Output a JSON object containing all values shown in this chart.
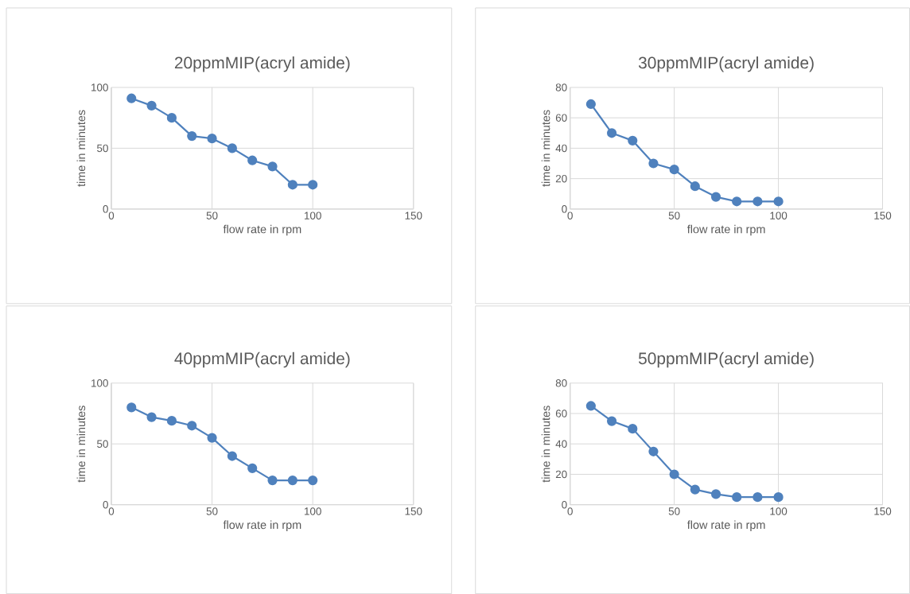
{
  "chart_data": [
    {
      "type": "line",
      "title": "20ppmMIP(acryl amide)",
      "xlabel": "flow rate in rpm",
      "ylabel": "time in minutes",
      "x": [
        10,
        20,
        30,
        40,
        50,
        60,
        70,
        80,
        90,
        100
      ],
      "values": [
        91,
        85,
        75,
        60,
        58,
        50,
        40,
        35,
        20,
        20
      ],
      "color": "#4f81bd",
      "xlim": [
        0,
        150
      ],
      "xticks": [
        0,
        50,
        100,
        150
      ],
      "ylim": [
        0,
        100
      ],
      "yticks": [
        0,
        50,
        100
      ],
      "grid": true,
      "marker": "circle",
      "line_style": "solid"
    },
    {
      "type": "line",
      "title": "30ppmMIP(acryl amide)",
      "xlabel": "flow rate in rpm",
      "ylabel": "time in minutes",
      "x": [
        10,
        20,
        30,
        40,
        50,
        60,
        70,
        80,
        90,
        100
      ],
      "values": [
        69,
        50,
        45,
        30,
        26,
        15,
        8,
        5,
        5,
        5
      ],
      "color": "#4f81bd",
      "xlim": [
        0,
        150
      ],
      "xticks": [
        0,
        50,
        100,
        150
      ],
      "ylim": [
        0,
        80
      ],
      "yticks": [
        0,
        20,
        40,
        60,
        80
      ],
      "grid": true,
      "marker": "circle",
      "line_style": "solid"
    },
    {
      "type": "line",
      "title": "40ppmMIP(acryl amide)",
      "xlabel": "flow rate in rpm",
      "ylabel": "time in minutes",
      "x": [
        10,
        20,
        30,
        40,
        50,
        60,
        70,
        80,
        90,
        100
      ],
      "values": [
        80,
        72,
        69,
        65,
        55,
        40,
        30,
        20,
        20,
        20
      ],
      "color": "#4f81bd",
      "xlim": [
        0,
        150
      ],
      "xticks": [
        0,
        50,
        100,
        150
      ],
      "ylim": [
        0,
        100
      ],
      "yticks": [
        0,
        50,
        100
      ],
      "grid": true,
      "marker": "circle",
      "line_style": "solid"
    },
    {
      "type": "line",
      "title": "50ppmMIP(acryl amide)",
      "xlabel": "flow rate in rpm",
      "ylabel": "time in minutes",
      "x": [
        10,
        20,
        30,
        40,
        50,
        60,
        70,
        80,
        90,
        100
      ],
      "values": [
        65,
        55,
        50,
        35,
        20,
        10,
        7,
        5,
        5,
        5
      ],
      "color": "#4f81bd",
      "xlim": [
        0,
        150
      ],
      "xticks": [
        0,
        50,
        100,
        150
      ],
      "ylim": [
        0,
        80
      ],
      "yticks": [
        0,
        20,
        40,
        60,
        80
      ],
      "grid": true,
      "marker": "circle",
      "line_style": "solid"
    }
  ]
}
